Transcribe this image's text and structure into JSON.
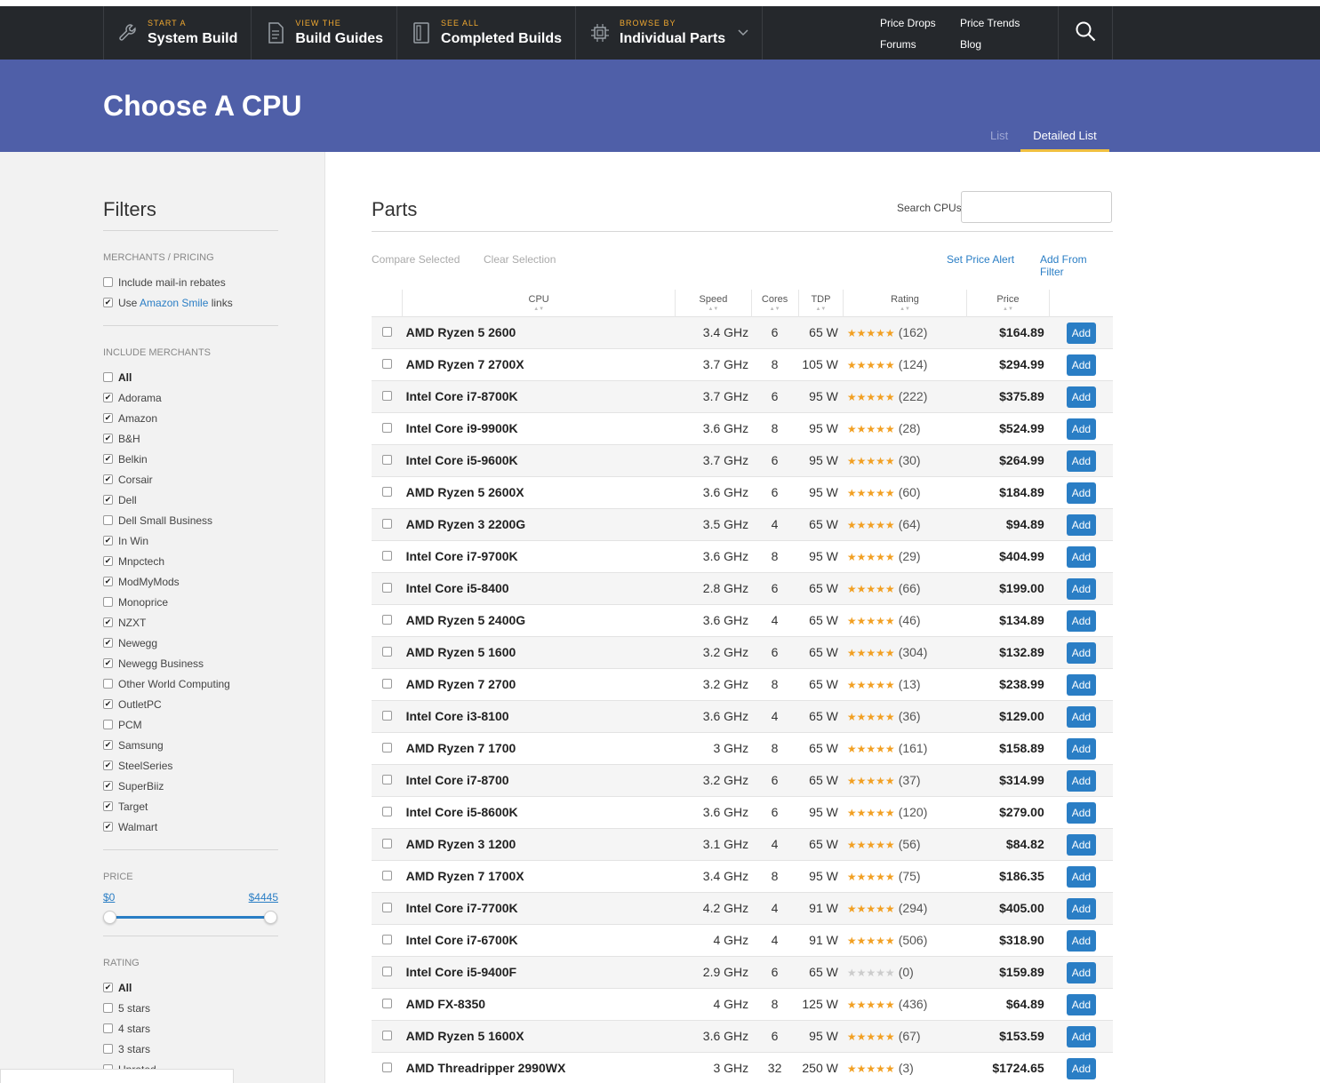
{
  "nav": {
    "items": [
      {
        "small": "START A",
        "big": "System Build",
        "icon": "wrench-icon"
      },
      {
        "small": "VIEW THE",
        "big": "Build Guides",
        "icon": "document-icon"
      },
      {
        "small": "SEE ALL",
        "big": "Completed Builds",
        "icon": "computer-case-icon"
      },
      {
        "small": "BROWSE BY",
        "big": "Individual Parts",
        "icon": "chip-icon"
      }
    ],
    "links": [
      "Price Drops",
      "Price Trends",
      "Forums",
      "Blog"
    ],
    "accent": "#f0a830"
  },
  "header": {
    "title": "Choose A CPU",
    "tabs": [
      "List",
      "Detailed List"
    ],
    "active_tab": "Detailed List",
    "color": "#4f5fa8"
  },
  "filters": {
    "title": "Filters",
    "merchants_pricing": {
      "head": "MERCHANTS / PRICING",
      "rebates": "Include mail-in rebates",
      "amazon_pre": "Use ",
      "amazon_link": "Amazon Smile",
      "amazon_post": " links"
    },
    "include_merchants": {
      "head": "INCLUDE MERCHANTS",
      "items": [
        {
          "label": "All",
          "checked": false
        },
        {
          "label": "Adorama",
          "checked": true
        },
        {
          "label": "Amazon",
          "checked": true
        },
        {
          "label": "B&H",
          "checked": true
        },
        {
          "label": "Belkin",
          "checked": true
        },
        {
          "label": "Corsair",
          "checked": true
        },
        {
          "label": "Dell",
          "checked": true
        },
        {
          "label": "Dell Small Business",
          "checked": false
        },
        {
          "label": "In Win",
          "checked": true
        },
        {
          "label": "Mnpctech",
          "checked": true
        },
        {
          "label": "ModMyMods",
          "checked": true
        },
        {
          "label": "Monoprice",
          "checked": false
        },
        {
          "label": "NZXT",
          "checked": true
        },
        {
          "label": "Newegg",
          "checked": true
        },
        {
          "label": "Newegg Business",
          "checked": true
        },
        {
          "label": "Other World Computing",
          "checked": false
        },
        {
          "label": "OutletPC",
          "checked": true
        },
        {
          "label": "PCM",
          "checked": false
        },
        {
          "label": "Samsung",
          "checked": true
        },
        {
          "label": "SteelSeries",
          "checked": true
        },
        {
          "label": "SuperBiiz",
          "checked": true
        },
        {
          "label": "Target",
          "checked": true
        },
        {
          "label": "Walmart",
          "checked": true
        }
      ]
    },
    "price": {
      "head": "PRICE",
      "min": "$0",
      "max": "$4445",
      "min_fraction": 0.0,
      "max_fraction": 1.0
    },
    "rating": {
      "head": "RATING",
      "items": [
        {
          "label": "All",
          "checked": true
        },
        {
          "label": "5 stars",
          "checked": false
        },
        {
          "label": "4 stars",
          "checked": false
        },
        {
          "label": "3 stars",
          "checked": false
        },
        {
          "label": "Unrated",
          "checked": false
        }
      ]
    }
  },
  "parts": {
    "title": "Parts",
    "search_label": "Search CPUs:",
    "search_value": "",
    "compare": "Compare Selected",
    "clear": "Clear Selection",
    "price_alert": "Set Price Alert",
    "add_from_filter": "Add From Filter",
    "columns": [
      "CPU",
      "Speed",
      "Cores",
      "TDP",
      "Rating",
      "Price"
    ],
    "add_label": "Add",
    "rows": [
      {
        "name": "AMD Ryzen 5 2600",
        "speed": "3.4 GHz",
        "cores": "6",
        "tdp": "65 W",
        "stars": 4.5,
        "reviews": "(162)",
        "price": "$164.89"
      },
      {
        "name": "AMD Ryzen 7 2700X",
        "speed": "3.7 GHz",
        "cores": "8",
        "tdp": "105 W",
        "stars": 4.5,
        "reviews": "(124)",
        "price": "$294.99"
      },
      {
        "name": "Intel Core i7-8700K",
        "speed": "3.7 GHz",
        "cores": "6",
        "tdp": "95 W",
        "stars": 4.5,
        "reviews": "(222)",
        "price": "$375.89"
      },
      {
        "name": "Intel Core i9-9900K",
        "speed": "3.6 GHz",
        "cores": "8",
        "tdp": "95 W",
        "stars": 4.5,
        "reviews": "(28)",
        "price": "$524.99"
      },
      {
        "name": "Intel Core i5-9600K",
        "speed": "3.7 GHz",
        "cores": "6",
        "tdp": "95 W",
        "stars": 4.5,
        "reviews": "(30)",
        "price": "$264.99"
      },
      {
        "name": "AMD Ryzen 5 2600X",
        "speed": "3.6 GHz",
        "cores": "6",
        "tdp": "95 W",
        "stars": 4.5,
        "reviews": "(60)",
        "price": "$184.89"
      },
      {
        "name": "AMD Ryzen 3 2200G",
        "speed": "3.5 GHz",
        "cores": "4",
        "tdp": "65 W",
        "stars": 4.5,
        "reviews": "(64)",
        "price": "$94.89"
      },
      {
        "name": "Intel Core i7-9700K",
        "speed": "3.6 GHz",
        "cores": "8",
        "tdp": "95 W",
        "stars": 4.5,
        "reviews": "(29)",
        "price": "$404.99"
      },
      {
        "name": "Intel Core i5-8400",
        "speed": "2.8 GHz",
        "cores": "6",
        "tdp": "65 W",
        "stars": 4.5,
        "reviews": "(66)",
        "price": "$199.00"
      },
      {
        "name": "AMD Ryzen 5 2400G",
        "speed": "3.6 GHz",
        "cores": "4",
        "tdp": "65 W",
        "stars": 4.5,
        "reviews": "(46)",
        "price": "$134.89"
      },
      {
        "name": "AMD Ryzen 5 1600",
        "speed": "3.2 GHz",
        "cores": "6",
        "tdp": "65 W",
        "stars": 4.5,
        "reviews": "(304)",
        "price": "$132.89"
      },
      {
        "name": "AMD Ryzen 7 2700",
        "speed": "3.2 GHz",
        "cores": "8",
        "tdp": "65 W",
        "stars": 5,
        "reviews": "(13)",
        "price": "$238.99"
      },
      {
        "name": "Intel Core i3-8100",
        "speed": "3.6 GHz",
        "cores": "4",
        "tdp": "65 W",
        "stars": 4.5,
        "reviews": "(36)",
        "price": "$129.00"
      },
      {
        "name": "AMD Ryzen 7 1700",
        "speed": "3 GHz",
        "cores": "8",
        "tdp": "65 W",
        "stars": 4.5,
        "reviews": "(161)",
        "price": "$158.89"
      },
      {
        "name": "Intel Core i7-8700",
        "speed": "3.2 GHz",
        "cores": "6",
        "tdp": "65 W",
        "stars": 4.5,
        "reviews": "(37)",
        "price": "$314.99"
      },
      {
        "name": "Intel Core i5-8600K",
        "speed": "3.6 GHz",
        "cores": "6",
        "tdp": "95 W",
        "stars": 4.5,
        "reviews": "(120)",
        "price": "$279.00"
      },
      {
        "name": "AMD Ryzen 3 1200",
        "speed": "3.1 GHz",
        "cores": "4",
        "tdp": "65 W",
        "stars": 4.5,
        "reviews": "(56)",
        "price": "$84.82"
      },
      {
        "name": "AMD Ryzen 7 1700X",
        "speed": "3.4 GHz",
        "cores": "8",
        "tdp": "95 W",
        "stars": 4.5,
        "reviews": "(75)",
        "price": "$186.35"
      },
      {
        "name": "Intel Core i7-7700K",
        "speed": "4.2 GHz",
        "cores": "4",
        "tdp": "91 W",
        "stars": 4.5,
        "reviews": "(294)",
        "price": "$405.00"
      },
      {
        "name": "Intel Core i7-6700K",
        "speed": "4 GHz",
        "cores": "4",
        "tdp": "91 W",
        "stars": 4.5,
        "reviews": "(506)",
        "price": "$318.90"
      },
      {
        "name": "Intel Core i5-9400F",
        "speed": "2.9 GHz",
        "cores": "6",
        "tdp": "65 W",
        "stars": 0,
        "reviews": "(0)",
        "price": "$159.89"
      },
      {
        "name": "AMD FX-8350",
        "speed": "4 GHz",
        "cores": "8",
        "tdp": "125 W",
        "stars": 4.5,
        "reviews": "(436)",
        "price": "$64.89"
      },
      {
        "name": "AMD Ryzen 5 1600X",
        "speed": "3.6 GHz",
        "cores": "6",
        "tdp": "95 W",
        "stars": 4.5,
        "reviews": "(67)",
        "price": "$153.59"
      },
      {
        "name": "AMD Threadripper 2990WX",
        "speed": "3 GHz",
        "cores": "32",
        "tdp": "250 W",
        "stars": 5,
        "reviews": "(3)",
        "price": "$1724.65"
      }
    ]
  }
}
